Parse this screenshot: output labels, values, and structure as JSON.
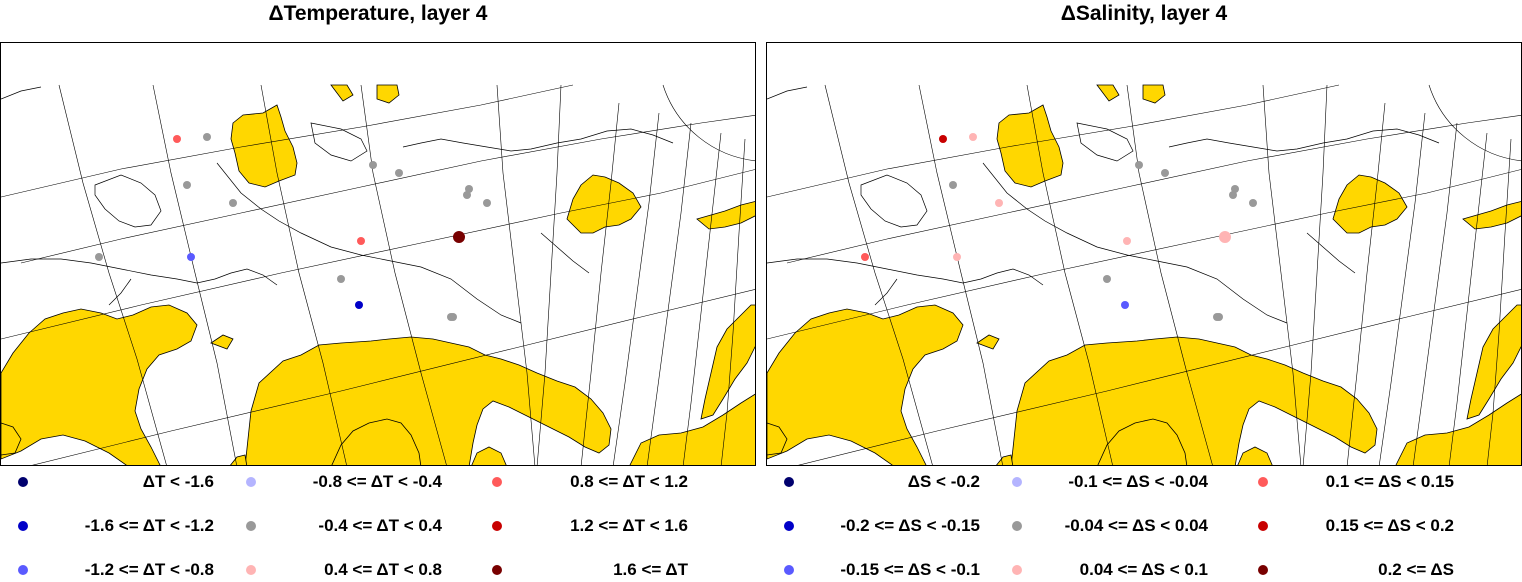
{
  "colors": {
    "land": "#ffd700",
    "ocean": "#ffffff",
    "coast": "#000000",
    "grid": "#000000"
  },
  "panels": [
    {
      "id": "temperature",
      "title": "ΔTemperature, layer 4",
      "legend": [
        {
          "label": "ΔT < -1.6",
          "color": "#00006e"
        },
        {
          "label": "-1.6 <= ΔT < -1.2",
          "color": "#0000c8"
        },
        {
          "label": "-1.2 <= ΔT < -0.8",
          "color": "#5a5aff"
        },
        {
          "label": "-0.8 <= ΔT < -0.4",
          "color": "#b4b4ff"
        },
        {
          "label": "-0.4 <= ΔT < 0.4",
          "color": "#999999"
        },
        {
          "label": "0.4 <= ΔT < 0.8",
          "color": "#ffb4b4"
        },
        {
          "label": "0.8 <= ΔT < 1.2",
          "color": "#ff5a5a"
        },
        {
          "label": "1.2 <= ΔT < 1.6",
          "color": "#c80000"
        },
        {
          "label": "1.6 <= ΔT",
          "color": "#780000"
        }
      ],
      "stations": [
        {
          "category": "0.8 <= ΔT < 1.2"
        },
        {
          "category": "-0.4 <= ΔT < 0.4"
        },
        {
          "category": "-0.4 <= ΔT < 0.4"
        },
        {
          "category": "-0.4 <= ΔT < 0.4"
        },
        {
          "category": "-0.4 <= ΔT < 0.4"
        },
        {
          "category": "-1.2 <= ΔT < -0.8"
        },
        {
          "category": "-0.4 <= ΔT < 0.4"
        },
        {
          "category": "0.8 <= ΔT < 1.2"
        },
        {
          "category": "-1.6 <= ΔT < -1.2"
        },
        {
          "category": "-0.4 <= ΔT < 0.4"
        },
        {
          "category": "-0.4 <= ΔT < 0.4"
        },
        {
          "category": "-0.4 <= ΔT < 0.4"
        },
        {
          "category": "-0.4 <= ΔT < 0.4"
        },
        {
          "category": "-0.4 <= ΔT < 0.4"
        },
        {
          "category": "-0.4 <= ΔT < 0.4"
        },
        {
          "category": "1.6 <= ΔT"
        },
        {
          "category": "-0.4 <= ΔT < 0.4"
        }
      ]
    },
    {
      "id": "salinity",
      "title": "ΔSalinity, layer 4",
      "legend": [
        {
          "label": "ΔS < -0.2",
          "color": "#00006e"
        },
        {
          "label": "-0.2 <= ΔS < -0.15",
          "color": "#0000c8"
        },
        {
          "label": "-0.15 <= ΔS < -0.1",
          "color": "#5a5aff"
        },
        {
          "label": "-0.1 <= ΔS < -0.04",
          "color": "#b4b4ff"
        },
        {
          "label": "-0.04 <= ΔS < 0.04",
          "color": "#999999"
        },
        {
          "label": "0.04 <= ΔS < 0.1",
          "color": "#ffb4b4"
        },
        {
          "label": "0.1 <= ΔS < 0.15",
          "color": "#ff5a5a"
        },
        {
          "label": "0.15 <= ΔS < 0.2",
          "color": "#c80000"
        },
        {
          "label": "0.2 <= ΔS",
          "color": "#780000"
        }
      ],
      "stations": [
        {
          "category": "0.15 <= ΔS < 0.2"
        },
        {
          "category": "0.04 <= ΔS < 0.1"
        },
        {
          "category": "-0.04 <= ΔS < 0.04"
        },
        {
          "category": "0.04 <= ΔS < 0.1"
        },
        {
          "category": "0.1 <= ΔS < 0.15"
        },
        {
          "category": "0.04 <= ΔS < 0.1"
        },
        {
          "category": "-0.04 <= ΔS < 0.04"
        },
        {
          "category": "0.04 <= ΔS < 0.1"
        },
        {
          "category": "-0.15 <= ΔS < -0.1"
        },
        {
          "category": "-0.04 <= ΔS < 0.04"
        },
        {
          "category": "-0.04 <= ΔS < 0.04"
        },
        {
          "category": "-0.04 <= ΔS < 0.04"
        },
        {
          "category": "-0.04 <= ΔS < 0.04"
        },
        {
          "category": "-0.04 <= ΔS < 0.04"
        },
        {
          "category": "-0.04 <= ΔS < 0.04"
        },
        {
          "category": "0.04 <= ΔS < 0.1"
        },
        {
          "category": "-0.04 <= ΔS < 0.04"
        }
      ]
    }
  ]
}
